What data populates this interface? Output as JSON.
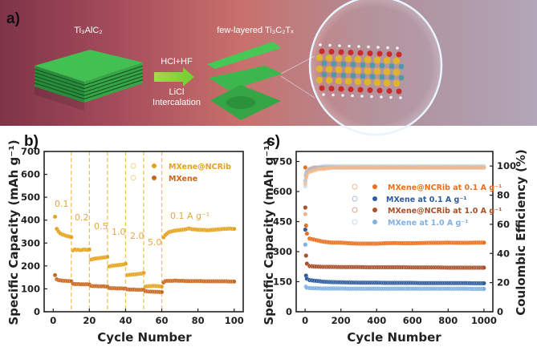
{
  "panel_a": {
    "label": "a)",
    "precursor": "Ti₃AlC₂",
    "product": "few-layered Ti₃C₂Tₓ",
    "reagents": "HCl+HF",
    "step1": "LiCl",
    "step2": "Intercalation"
  },
  "chart_data": [
    {
      "panel_label": "b)",
      "type": "scatter",
      "xlabel": "Cycle Number",
      "ylabel": "Specific Capacity (mAh g⁻¹)",
      "xlim": [
        -5,
        105
      ],
      "ylim": [
        0,
        700
      ],
      "xticks": [
        0,
        20,
        40,
        60,
        80,
        100
      ],
      "yticks": [
        0,
        100,
        200,
        300,
        400,
        500,
        600,
        700
      ],
      "grid": false,
      "legend_position": "top-right",
      "rate_boundaries": [
        10,
        20,
        30,
        40,
        50,
        60
      ],
      "rate_labels": [
        "0.1",
        "0.2",
        "0.5",
        "1.0",
        "2.0",
        "5.0",
        "0.1 A g⁻¹"
      ],
      "series": [
        {
          "name": "MXene@NCRib",
          "color": "#E5A21C",
          "values": [
            415,
            362,
            350,
            342,
            338,
            335,
            332,
            330,
            328,
            326,
            268,
            272,
            270,
            271,
            269,
            270,
            272,
            271,
            270,
            272,
            228,
            230,
            232,
            233,
            234,
            235,
            236,
            237,
            238,
            240,
            198,
            200,
            201,
            202,
            203,
            204,
            205,
            206,
            207,
            210,
            160,
            161,
            162,
            163,
            163,
            164,
            165,
            166,
            167,
            170,
            110,
            111,
            112,
            112,
            113,
            113,
            112,
            112,
            111,
            110,
            325,
            335,
            342,
            348,
            350,
            352,
            354,
            355,
            356,
            357,
            358,
            359,
            360,
            362,
            364,
            362,
            360,
            360,
            359,
            358,
            358,
            358,
            357,
            357,
            356,
            356,
            357,
            358,
            358,
            359,
            360,
            360,
            361,
            362,
            362,
            362,
            363,
            363,
            362,
            362
          ]
        },
        {
          "name": "MXene",
          "color": "#C8661C",
          "values": [
            160,
            142,
            138,
            137,
            136,
            135,
            135,
            134,
            134,
            133,
            122,
            121,
            121,
            121,
            120,
            120,
            120,
            120,
            120,
            119,
            113,
            112,
            112,
            112,
            111,
            111,
            111,
            111,
            110,
            110,
            104,
            103,
            103,
            103,
            102,
            102,
            102,
            102,
            101,
            101,
            98,
            97,
            97,
            97,
            97,
            96,
            96,
            96,
            96,
            96,
            90,
            89,
            88,
            88,
            88,
            87,
            87,
            87,
            86,
            86,
            128,
            134,
            135,
            135,
            135,
            135,
            136,
            136,
            135,
            135,
            135,
            135,
            134,
            134,
            134,
            134,
            134,
            134,
            134,
            134,
            134,
            134,
            133,
            133,
            133,
            133,
            133,
            133,
            133,
            133,
            133,
            133,
            133,
            133,
            133,
            133,
            132,
            132,
            132,
            132
          ]
        }
      ]
    },
    {
      "panel_label": "c)",
      "type": "scatter",
      "xlabel": "Cycle Number",
      "ylabel": "Specific Capacity (mAh g⁻¹)",
      "ylabel_right": "Coulombic Efficiency (%)",
      "xlim": [
        -50,
        1050
      ],
      "ylim": [
        0,
        800
      ],
      "ylim_right": [
        0,
        110
      ],
      "xticks": [
        0,
        200,
        400,
        600,
        800,
        1000
      ],
      "yticks": [
        0,
        150,
        300,
        450,
        600,
        750
      ],
      "yticks_right": [
        0,
        20,
        40,
        60,
        80,
        100
      ],
      "grid": false,
      "legend_position": "center-right",
      "x": [
        1,
        5,
        10,
        25,
        50,
        75,
        100,
        150,
        200,
        250,
        300,
        350,
        400,
        450,
        500,
        550,
        600,
        650,
        700,
        750,
        800,
        850,
        900,
        950,
        1000
      ],
      "series": [
        {
          "name": "MXene@NCRib at 0.1 A g⁻¹",
          "color": "#E8701E",
          "light": "#F4B98A",
          "capacity": [
            720,
            430,
            390,
            365,
            360,
            355,
            350,
            345,
            345,
            342,
            340,
            340,
            340,
            342,
            343,
            342,
            342,
            343,
            344,
            344,
            345,
            344,
            344,
            345,
            345
          ],
          "ce": [
            88,
            92,
            94,
            96,
            97,
            98,
            98,
            99,
            99,
            99,
            99,
            99,
            99,
            99,
            99,
            99,
            99,
            99,
            99,
            99,
            99,
            99,
            99,
            99,
            99
          ]
        },
        {
          "name": "MXene at 0.1 A g⁻¹",
          "color": "#2D5C9E",
          "light": "#A9BEDB",
          "capacity": [
            410,
            180,
            165,
            158,
            155,
            153,
            150,
            148,
            147,
            146,
            145,
            145,
            145,
            144,
            144,
            144,
            144,
            143,
            143,
            143,
            143,
            143,
            143,
            142,
            142
          ],
          "ce": [
            90,
            94,
            96,
            97,
            98,
            99,
            99,
            99,
            99,
            99,
            99,
            99,
            99,
            99,
            99,
            99,
            99,
            99,
            99,
            99,
            99,
            99,
            99,
            99,
            99
          ]
        },
        {
          "name": "MXene@NCRib at 1.0 A g⁻¹",
          "color": "#A8502A",
          "light": "#D8A98E",
          "capacity": [
            520,
            280,
            240,
            228,
            226,
            225,
            224,
            224,
            223,
            223,
            223,
            222,
            222,
            222,
            222,
            222,
            221,
            221,
            221,
            221,
            220,
            220,
            220,
            220,
            220
          ],
          "ce": [
            67,
            93,
            96,
            98,
            99,
            99,
            99,
            99,
            99,
            99,
            99,
            99,
            99,
            99,
            99,
            99,
            99,
            99,
            99,
            99,
            99,
            99,
            99,
            99,
            99
          ]
        },
        {
          "name": "MXene at 1.0 A g⁻¹",
          "color": "#7FB2E0",
          "light": "#C6DDF2",
          "capacity": [
            335,
            125,
            120,
            118,
            117,
            117,
            116,
            116,
            116,
            115,
            115,
            115,
            115,
            115,
            115,
            115,
            115,
            115,
            115,
            115,
            115,
            115,
            115,
            114,
            114
          ],
          "ce": [
            86,
            95,
            97,
            98,
            99,
            99,
            100,
            100,
            100,
            100,
            100,
            100,
            100,
            100,
            100,
            100,
            100,
            100,
            100,
            100,
            100,
            100,
            100,
            100,
            100
          ]
        }
      ]
    }
  ]
}
